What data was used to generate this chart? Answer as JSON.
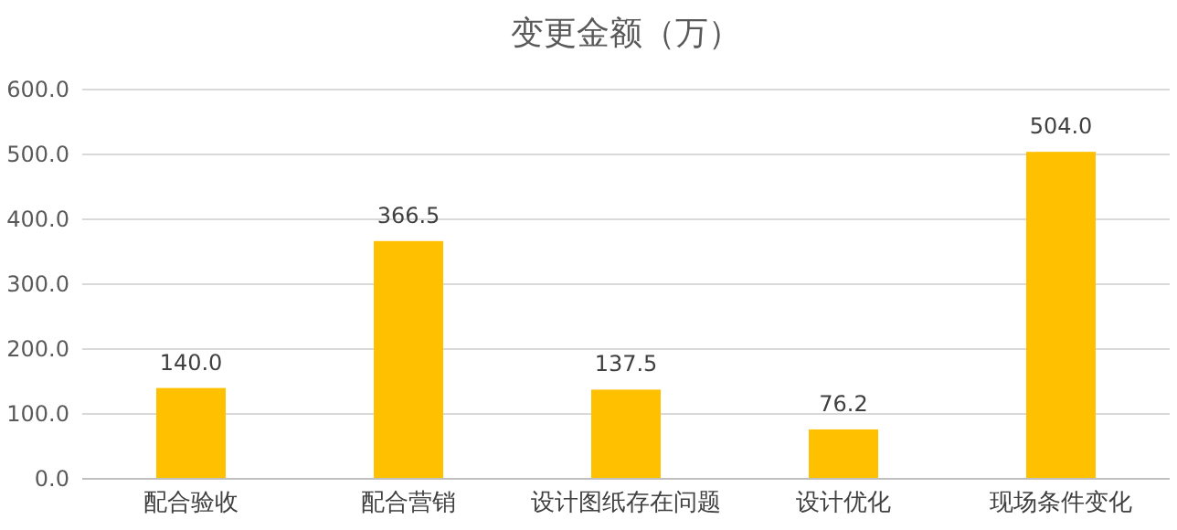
{
  "chart_data": {
    "type": "bar",
    "title": "变更金额（万）",
    "categories": [
      "配合验收",
      "配合营销",
      "设计图纸存在问题",
      "设计优化",
      "现场条件变化"
    ],
    "values": [
      140.0,
      366.5,
      137.5,
      76.2,
      504.0
    ],
    "color": "#ffc000",
    "ylim": [
      0,
      600
    ],
    "yticks": [
      {
        "value": 0,
        "label": "0.0"
      },
      {
        "value": 100,
        "label": "100.0"
      },
      {
        "value": 200,
        "label": "200.0"
      },
      {
        "value": 300,
        "label": "300.0"
      },
      {
        "value": 400,
        "label": "400.0"
      },
      {
        "value": 500,
        "label": "500.0"
      },
      {
        "value": 600,
        "label": "600.0"
      }
    ],
    "value_labels": [
      "140.0",
      "366.5",
      "137.5",
      "76.2",
      "504.0"
    ],
    "grid": "y",
    "legend": false
  }
}
